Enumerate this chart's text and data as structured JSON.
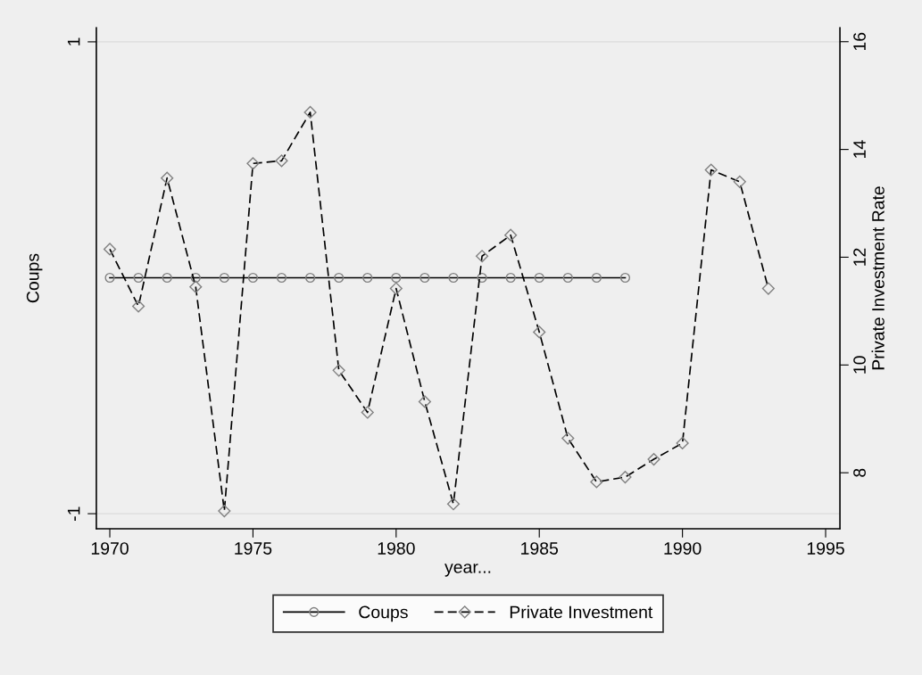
{
  "chart_data": {
    "type": "line",
    "xlabel": "year...",
    "ylabel": "Coups",
    "y2label": "Private Investment Rate",
    "x": [
      1970,
      1971,
      1972,
      1973,
      1974,
      1975,
      1976,
      1977,
      1978,
      1979,
      1980,
      1981,
      1982,
      1983,
      1984,
      1985,
      1986,
      1987,
      1988,
      1989,
      1990,
      1991,
      1992,
      1993
    ],
    "series": [
      {
        "name": "Coups",
        "color": "#000000",
        "marker": "circle",
        "line_style": "solid",
        "x": [
          1970,
          1971,
          1972,
          1973,
          1974,
          1975,
          1976,
          1977,
          1978,
          1979,
          1980,
          1981,
          1982,
          1983,
          1984,
          1985,
          1986,
          1987,
          1988
        ],
        "values": [
          0,
          0,
          0,
          0,
          0,
          0,
          0,
          0,
          0,
          0,
          0,
          0,
          0,
          0,
          0,
          0,
          0,
          0,
          0
        ]
      },
      {
        "name": "Private Investment",
        "color": "#000000",
        "marker": "diamond",
        "line_style": "dashed",
        "axis": "y2",
        "values": [
          12.15,
          11.09,
          13.47,
          11.45,
          7.29,
          13.74,
          13.79,
          14.69,
          9.9,
          9.12,
          11.42,
          9.32,
          7.42,
          12.02,
          12.41,
          10.61,
          8.64,
          7.83,
          7.92,
          8.25,
          8.55,
          13.62,
          13.4,
          11.42
        ]
      }
    ],
    "xlim": [
      1969.53,
      1995.5
    ],
    "xticks": [
      1970,
      1975,
      1980,
      1985,
      1990,
      1995
    ],
    "ylim": [
      -1.064,
      1.06
    ],
    "yticks": [
      -1,
      1
    ],
    "y2lim": [
      6.96,
      16.26
    ],
    "y2ticks": [
      8,
      10,
      12,
      14,
      16
    ],
    "grid": "y",
    "legend": "bottom"
  }
}
